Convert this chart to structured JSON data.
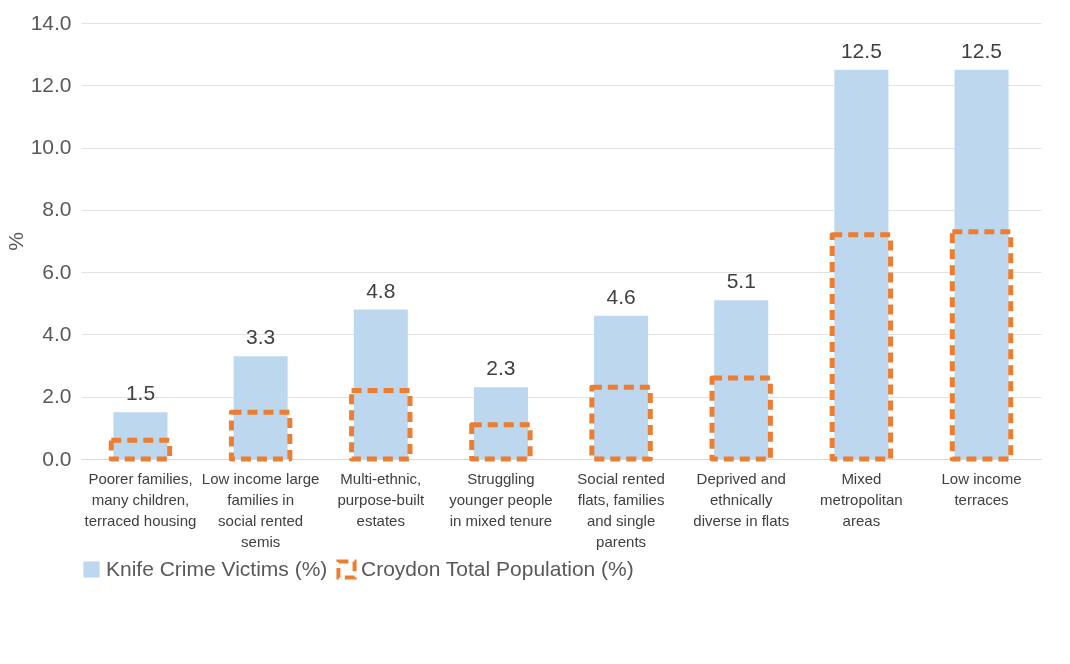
{
  "chart_data": {
    "type": "bar",
    "ylabel": "%",
    "categories": [
      "Poorer families, many children, terraced housing",
      "Low income large families in social rented semis",
      "Multi-ethnic, purpose-built estates",
      "Struggling younger people in mixed tenure",
      "Social rented flats, families and single parents",
      "Deprived and ethnically diverse in flats",
      "Mixed metropolitan areas",
      "Low income terraces"
    ],
    "series": [
      {
        "name": "Knife Crime Victims (%)",
        "color": "#bdd7ee",
        "values": [
          1.5,
          3.3,
          4.8,
          2.3,
          4.6,
          5.1,
          12.5,
          12.5
        ],
        "value_labels": [
          "1.5",
          "3.3",
          "4.8",
          "2.3",
          "4.6",
          "5.1",
          "12.5",
          "12.5"
        ]
      },
      {
        "name": "Croydon Total Population (%)",
        "color": "#ed7d31",
        "line_style": "dashed",
        "values": [
          0.6,
          1.5,
          2.2,
          1.1,
          2.3,
          2.6,
          7.2,
          7.3
        ]
      }
    ],
    "ylim": [
      0,
      14
    ],
    "yticks": [
      {
        "value": 0,
        "label": "0.0"
      },
      {
        "value": 2,
        "label": "2.0"
      },
      {
        "value": 4,
        "label": "4.0"
      },
      {
        "value": 6,
        "label": "6.0"
      },
      {
        "value": 8,
        "label": "8.0"
      },
      {
        "value": 10,
        "label": "10.0"
      },
      {
        "value": 12,
        "label": "12.0"
      },
      {
        "value": 14,
        "label": "14.0"
      }
    ],
    "grid": "y",
    "legend": "bottom"
  }
}
